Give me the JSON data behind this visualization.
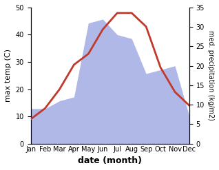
{
  "months": [
    "Jan",
    "Feb",
    "Mar",
    "Apr",
    "May",
    "Jun",
    "Jul",
    "Aug",
    "Sep",
    "Oct",
    "Nov",
    "Dec"
  ],
  "temperature": [
    9,
    13,
    20,
    29,
    33,
    42,
    48,
    48,
    43,
    28,
    19,
    14
  ],
  "precipitation": [
    9,
    9,
    11,
    12,
    31,
    32,
    28,
    27,
    18,
    19,
    20,
    7
  ],
  "temp_color": "#c0392b",
  "precip_color": "#b0b8e8",
  "temp_ylim": [
    0,
    50
  ],
  "precip_ylim": [
    0,
    35
  ],
  "xlabel": "date (month)",
  "ylabel_left": "max temp (C)",
  "ylabel_right": "med. precipitation (kg/m2)",
  "temp_linewidth": 2.0,
  "fig_width": 3.18,
  "fig_height": 2.47,
  "dpi": 100
}
